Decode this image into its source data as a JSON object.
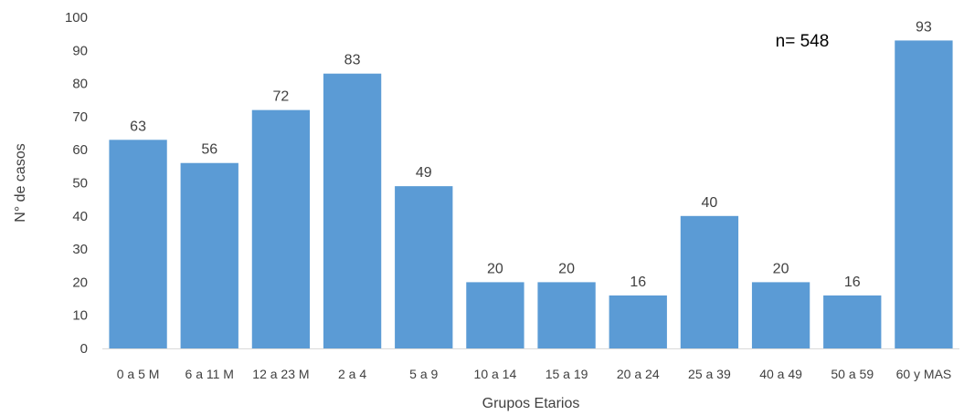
{
  "chart_data": {
    "type": "bar",
    "title": "",
    "xlabel": "Grupos Etarios",
    "ylabel": "N° de casos",
    "ylim": [
      0,
      100
    ],
    "yticks": [
      0,
      10,
      20,
      30,
      40,
      50,
      60,
      70,
      80,
      90,
      100
    ],
    "grid": false,
    "legend": "none",
    "bar_color": "#5b9bd5",
    "annotation": "n= 548",
    "categories": [
      "0 a 5 M",
      "6 a 11 M",
      "12 a 23 M",
      "2 a 4",
      "5 a 9",
      "10 a 14",
      "15 a 19",
      "20 a 24",
      "25 a 39",
      "40 a 49",
      "50 a 59",
      "60 y MAS"
    ],
    "values": [
      63,
      56,
      72,
      83,
      49,
      20,
      20,
      16,
      40,
      20,
      16,
      93
    ],
    "data_labels": [
      "63",
      "56",
      "72",
      "83",
      "49",
      "20",
      "20",
      "16",
      "40",
      "20",
      "16",
      "93"
    ]
  }
}
